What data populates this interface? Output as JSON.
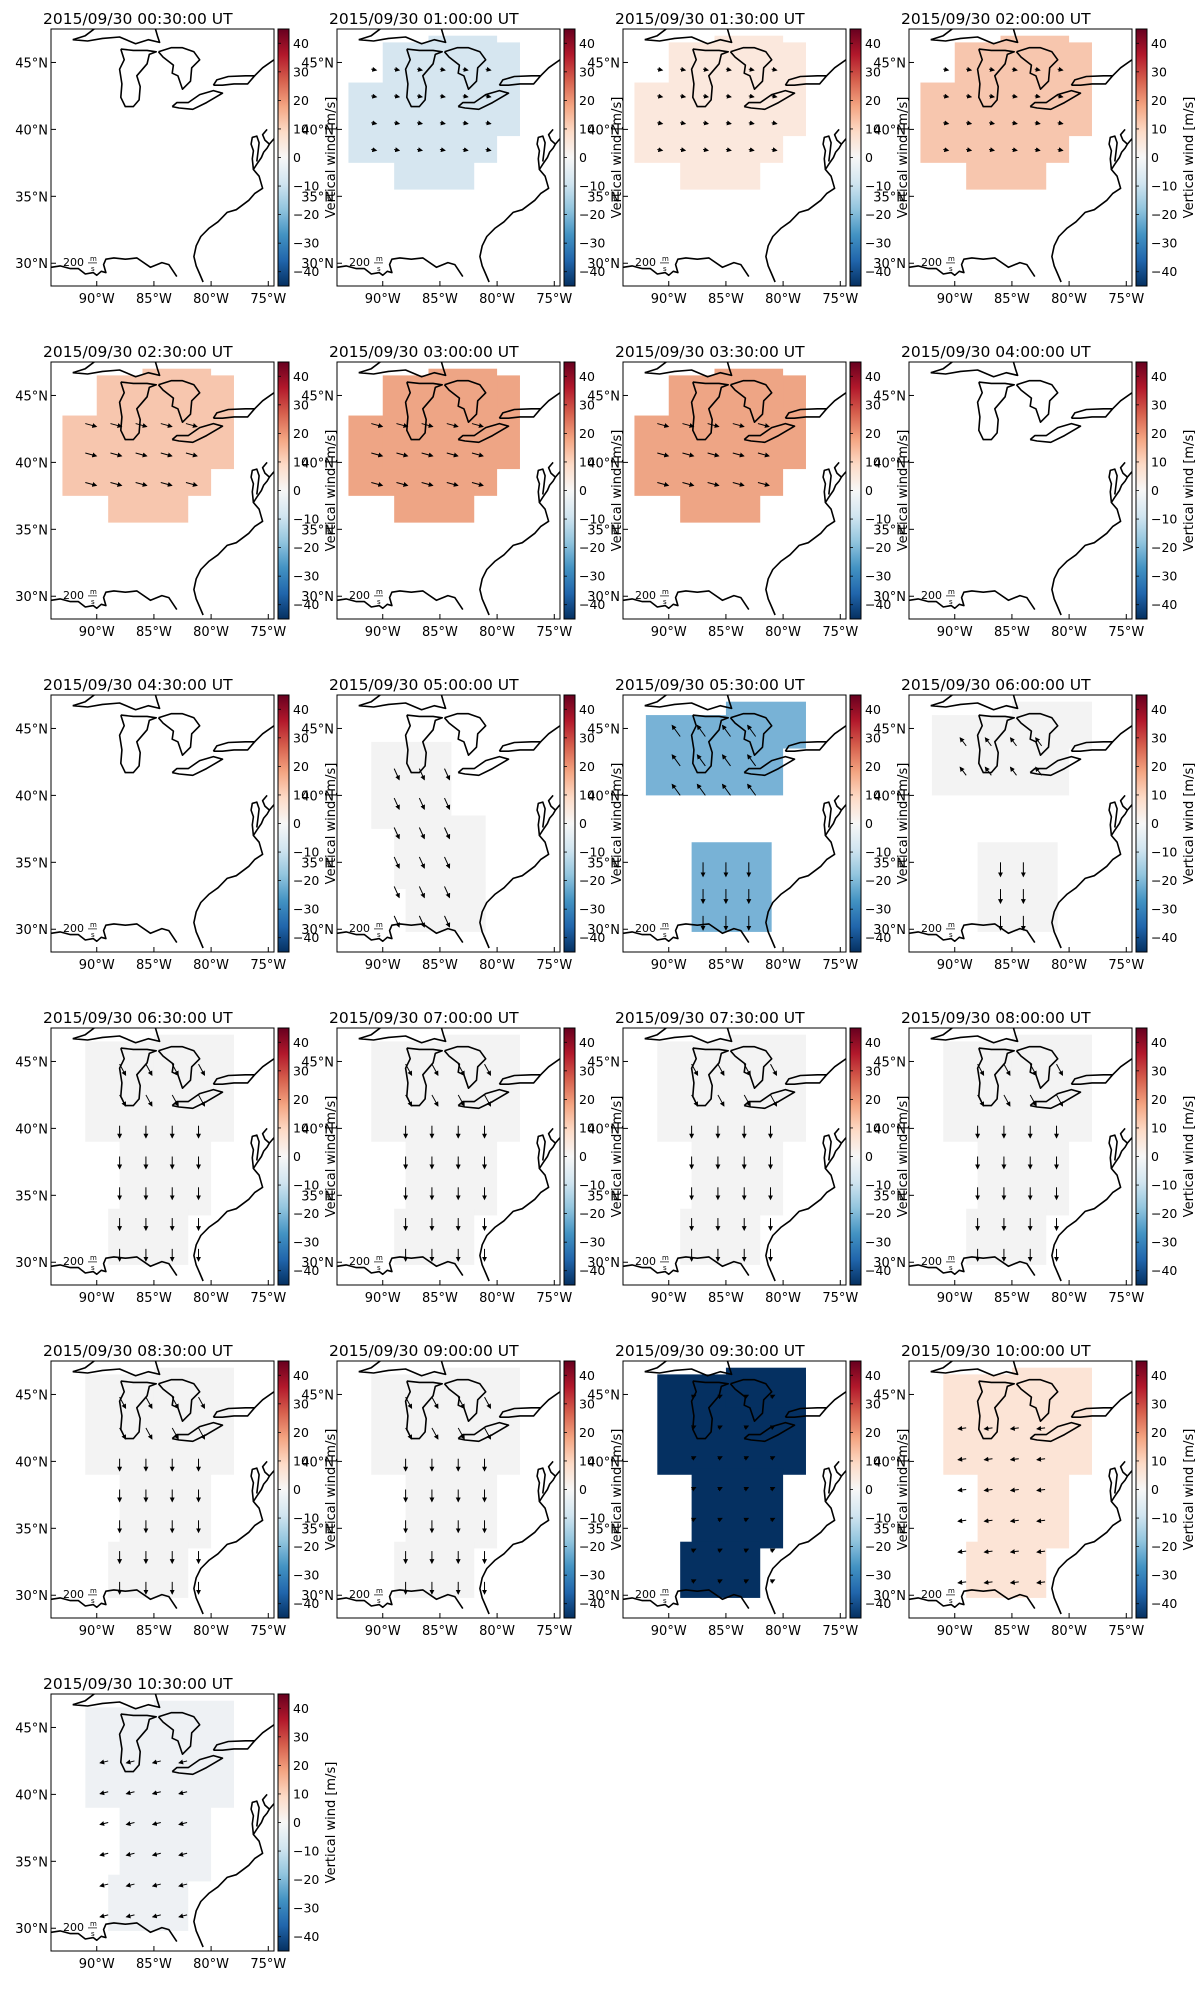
{
  "colorbar": {
    "label": "Vertical wind [m/s]",
    "ticks": [
      "40",
      "30",
      "20",
      "10",
      "0",
      "−10",
      "−20",
      "−30",
      "−40"
    ],
    "range": [
      -45,
      45
    ],
    "colormap": [
      "#053061",
      "#2166ac",
      "#4393c3",
      "#92c5de",
      "#d1e5f0",
      "#f7f7f7",
      "#fddbc7",
      "#f4a582",
      "#d6604d",
      "#b2182b",
      "#67001f"
    ]
  },
  "axes": {
    "lon_ticks": [
      "90°W",
      "85°W",
      "80°W",
      "75°W"
    ],
    "lat_ticks": [
      "45°N",
      "40°N",
      "35°N",
      "30°N"
    ],
    "lon_range": [
      -94,
      -74.5
    ],
    "lat_range": [
      28.3,
      47.5
    ]
  },
  "scale_arrow_label": "200",
  "scale_arrow_unit_num": "m",
  "scale_arrow_unit_den": "s",
  "panels": [
    {
      "title": "2015/09/30 00:30:00 UT",
      "region": "none",
      "fill": "#ffffff",
      "vwind": 0
    },
    {
      "title": "2015/09/30 01:00:00 UT",
      "region": "midwest",
      "fill": "#d6e6f0",
      "vwind": -8
    },
    {
      "title": "2015/09/30 01:30:00 UT",
      "region": "midwest",
      "fill": "#fbe8dd",
      "vwind": 4
    },
    {
      "title": "2015/09/30 02:00:00 UT",
      "region": "midwest",
      "fill": "#f7c6ae",
      "vwind": 12
    },
    {
      "title": "2015/09/30 02:30:00 UT",
      "region": "midwest",
      "fill": "#f7c6ae",
      "vwind": 12
    },
    {
      "title": "2015/09/30 03:00:00 UT",
      "region": "midwest",
      "fill": "#eea585",
      "vwind": 18
    },
    {
      "title": "2015/09/30 03:30:00 UT",
      "region": "midwest",
      "fill": "#eea585",
      "vwind": 18
    },
    {
      "title": "2015/09/30 04:00:00 UT",
      "region": "none",
      "fill": "#ffffff",
      "vwind": 0
    },
    {
      "title": "2015/09/30 04:30:00 UT",
      "region": "none",
      "fill": "#ffffff",
      "vwind": 0
    },
    {
      "title": "2015/09/30 05:00:00 UT",
      "region": "south",
      "fill": "#f3f3f3",
      "vwind": -1
    },
    {
      "title": "2015/09/30 05:30:00 UT",
      "region": "split",
      "fill": "#78b2d6",
      "vwind": -18
    },
    {
      "title": "2015/09/30 06:00:00 UT",
      "region": "split",
      "fill": "#f3f3f3",
      "vwind": -1
    },
    {
      "title": "2015/09/30 06:30:00 UT",
      "region": "full",
      "fill": "#f3f3f3",
      "vwind": -1
    },
    {
      "title": "2015/09/30 07:00:00 UT",
      "region": "full",
      "fill": "#f3f3f3",
      "vwind": -1
    },
    {
      "title": "2015/09/30 07:30:00 UT",
      "region": "full",
      "fill": "#f3f3f3",
      "vwind": -1
    },
    {
      "title": "2015/09/30 08:00:00 UT",
      "region": "full",
      "fill": "#f3f3f3",
      "vwind": -1
    },
    {
      "title": "2015/09/30 08:30:00 UT",
      "region": "full",
      "fill": "#f3f3f3",
      "vwind": -1
    },
    {
      "title": "2015/09/30 09:00:00 UT",
      "region": "full",
      "fill": "#f3f3f3",
      "vwind": -1
    },
    {
      "title": "2015/09/30 09:30:00 UT",
      "region": "full",
      "fill": "#053061",
      "vwind": -45
    },
    {
      "title": "2015/09/30 10:00:00 UT",
      "region": "full",
      "fill": "#fce4d6",
      "vwind": 5
    },
    {
      "title": "2015/09/30 10:30:00 UT",
      "region": "full",
      "fill": "#eef1f4",
      "vwind": -3
    }
  ]
}
